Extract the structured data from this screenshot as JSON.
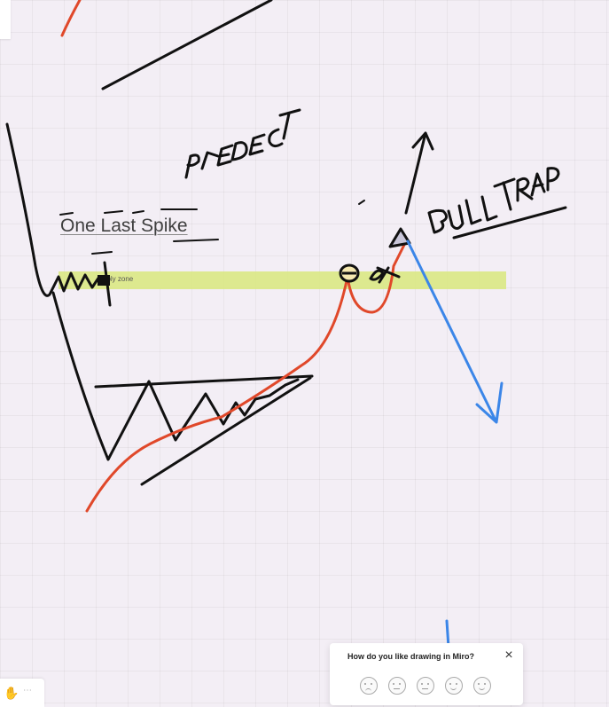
{
  "board": {
    "zone_label": "pply zone",
    "spike_label": "One Last Spike",
    "handwriting": [
      "PREDECT",
      "BULL TRAP"
    ]
  },
  "feedback": {
    "question": "How do you like drawing in Miro?",
    "close_icon": "×",
    "ratings": [
      "very-bad-face-icon",
      "bad-face-icon",
      "neutral-face-icon",
      "good-face-icon",
      "very-good-face-icon"
    ]
  },
  "toolbar": {
    "hand_icon": "✋",
    "more_icon": "⋯"
  },
  "colors": {
    "canvas": "#f3eef5",
    "zone": "#dbe889",
    "ink_black": "#111111",
    "ink_orange": "#e0482a",
    "ink_blue": "#3b86e8"
  }
}
